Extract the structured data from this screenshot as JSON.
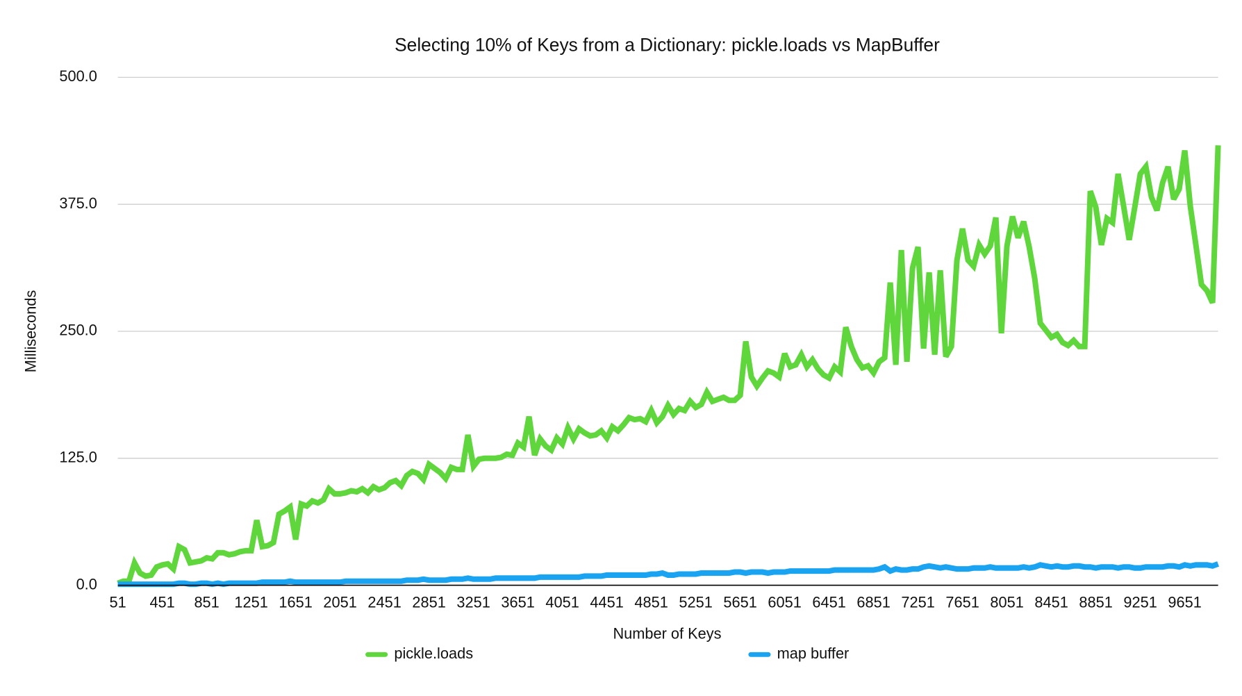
{
  "chart_data": {
    "type": "line",
    "title": "Selecting 10% of Keys from a Dictionary: pickle.loads vs MapBuffer",
    "xlabel": "Number of Keys",
    "ylabel": "Milliseconds",
    "categories": [
      "51",
      null,
      null,
      null,
      null,
      null,
      null,
      null,
      "451",
      null,
      null,
      null,
      null,
      null,
      null,
      null,
      "851",
      null,
      null,
      null,
      null,
      null,
      null,
      null,
      "1251",
      null,
      null,
      null,
      null,
      null,
      null,
      null,
      "1651",
      null,
      null,
      null,
      null,
      null,
      null,
      null,
      "2051",
      null,
      null,
      null,
      null,
      null,
      null,
      null,
      "2451",
      null,
      null,
      null,
      null,
      null,
      null,
      null,
      "2851",
      null,
      null,
      null,
      null,
      null,
      null,
      null,
      "3251",
      null,
      null,
      null,
      null,
      null,
      null,
      null,
      "3651",
      null,
      null,
      null,
      null,
      null,
      null,
      null,
      "4051",
      null,
      null,
      null,
      null,
      null,
      null,
      null,
      "4451",
      null,
      null,
      null,
      null,
      null,
      null,
      null,
      "4851",
      null,
      null,
      null,
      null,
      null,
      null,
      null,
      "5251",
      null,
      null,
      null,
      null,
      null,
      null,
      null,
      "5651",
      null,
      null,
      null,
      null,
      null,
      null,
      null,
      "6051",
      null,
      null,
      null,
      null,
      null,
      null,
      null,
      "6451",
      null,
      null,
      null,
      null,
      null,
      null,
      null,
      "6851",
      null,
      null,
      null,
      null,
      null,
      null,
      null,
      "7251",
      null,
      null,
      null,
      null,
      null,
      null,
      null,
      "7651",
      null,
      null,
      null,
      null,
      null,
      null,
      null,
      "8051",
      null,
      null,
      null,
      null,
      null,
      null,
      null,
      "8451",
      null,
      null,
      null,
      null,
      null,
      null,
      null,
      "8851",
      null,
      null,
      null,
      null,
      null,
      null,
      null,
      "9251",
      null,
      null,
      null,
      null,
      null,
      null,
      null,
      "9651",
      null,
      null,
      null,
      null,
      null,
      null
    ],
    "series": [
      {
        "name": "pickle.loads",
        "color": "#5fd63b",
        "values": [
          2,
          4,
          4,
          22,
          12,
          9,
          10,
          18,
          20,
          21,
          16,
          38,
          35,
          22,
          23,
          24,
          27,
          26,
          32,
          32,
          30,
          31,
          33,
          34,
          34,
          64,
          38,
          39,
          42,
          70,
          73,
          77,
          45,
          80,
          78,
          83,
          81,
          84,
          95,
          90,
          90,
          91,
          93,
          92,
          95,
          91,
          97,
          94,
          96,
          101,
          103,
          98,
          108,
          112,
          110,
          104,
          119,
          115,
          111,
          105,
          116,
          114,
          114,
          148,
          117,
          124,
          125,
          125,
          125,
          126,
          129,
          128,
          140,
          136,
          166,
          128,
          144,
          137,
          133,
          145,
          139,
          155,
          144,
          154,
          150,
          147,
          148,
          152,
          145,
          156,
          152,
          158,
          165,
          163,
          164,
          161,
          172,
          160,
          166,
          177,
          168,
          174,
          172,
          181,
          175,
          178,
          190,
          181,
          183,
          185,
          182,
          182,
          187,
          240,
          205,
          196,
          204,
          211,
          209,
          205,
          228,
          215,
          217,
          227,
          215,
          222,
          213,
          207,
          204,
          215,
          210,
          254,
          235,
          222,
          214,
          216,
          209,
          220,
          224,
          298,
          217,
          330,
          220,
          312,
          333,
          233,
          308,
          227,
          310,
          225,
          235,
          320,
          351,
          320,
          314,
          335,
          326,
          334,
          362,
          248,
          334,
          363,
          342,
          358,
          333,
          302,
          258,
          251,
          244,
          247,
          239,
          236,
          241,
          235,
          235,
          388,
          372,
          335,
          361,
          357,
          405,
          373,
          340,
          372,
          405,
          412,
          382,
          369,
          396,
          412,
          380,
          390,
          428,
          373,
          335,
          296,
          290,
          278,
          433
        ]
      },
      {
        "name": "map buffer",
        "color": "#1aa3f0",
        "values": [
          1,
          1,
          1,
          1,
          1,
          1,
          1,
          1,
          1,
          1,
          1,
          2,
          2,
          1,
          1,
          2,
          2,
          1,
          2,
          1,
          2,
          2,
          2,
          2,
          2,
          2,
          3,
          3,
          3,
          3,
          3,
          4,
          3,
          3,
          3,
          3,
          3,
          3,
          3,
          3,
          3,
          4,
          4,
          4,
          4,
          4,
          4,
          4,
          4,
          4,
          4,
          4,
          5,
          5,
          5,
          6,
          5,
          5,
          5,
          5,
          6,
          6,
          6,
          7,
          6,
          6,
          6,
          6,
          7,
          7,
          7,
          7,
          7,
          7,
          7,
          7,
          8,
          8,
          8,
          8,
          8,
          8,
          8,
          8,
          9,
          9,
          9,
          9,
          10,
          10,
          10,
          10,
          10,
          10,
          10,
          10,
          11,
          11,
          12,
          10,
          10,
          11,
          11,
          11,
          11,
          12,
          12,
          12,
          12,
          12,
          12,
          13,
          13,
          12,
          13,
          13,
          13,
          12,
          13,
          13,
          13,
          14,
          14,
          14,
          14,
          14,
          14,
          14,
          14,
          15,
          15,
          15,
          15,
          15,
          15,
          15,
          15,
          16,
          18,
          14,
          16,
          15,
          15,
          16,
          16,
          18,
          19,
          18,
          17,
          18,
          17,
          16,
          16,
          16,
          17,
          17,
          17,
          18,
          17,
          17,
          17,
          17,
          17,
          18,
          17,
          18,
          20,
          19,
          18,
          19,
          18,
          18,
          19,
          19,
          18,
          18,
          17,
          18,
          18,
          18,
          17,
          18,
          18,
          17,
          17,
          18,
          18,
          18,
          18,
          19,
          19,
          18,
          20,
          19,
          20,
          20,
          20,
          19,
          21
        ]
      }
    ],
    "ylim": [
      0,
      500
    ],
    "yticks": [
      {
        "value": 0,
        "label": "0.0"
      },
      {
        "value": 125,
        "label": "125.0"
      },
      {
        "value": 250,
        "label": "250.0"
      },
      {
        "value": 375,
        "label": "375.0"
      },
      {
        "value": 500,
        "label": "500.0"
      }
    ],
    "grid": true,
    "legend": "bottom"
  }
}
